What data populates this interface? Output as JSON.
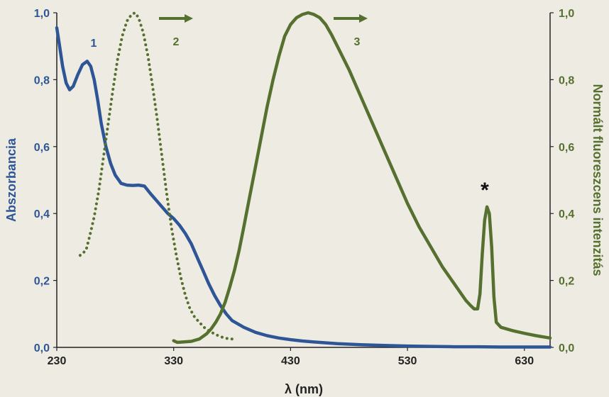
{
  "chart_data": {
    "type": "line",
    "xlabel": "λ (nm)",
    "ylabel_left": "Abszorbancia",
    "ylabel_right": "Normált fluoreszcens intenzitás",
    "xlim": [
      230,
      652
    ],
    "ylim_left": [
      0,
      1.0
    ],
    "ylim_right": [
      0,
      1.0
    ],
    "x_ticks": [
      "230",
      "330",
      "430",
      "530",
      "630"
    ],
    "y_ticks_left": [
      "0,0",
      "0,2",
      "0,4",
      "0,6",
      "0,8",
      "1,0"
    ],
    "y_ticks_right": [
      "0,0",
      "0,2",
      "0,4",
      "0,6",
      "0,8",
      "1,0"
    ],
    "grid": false,
    "colors": {
      "absorbance": "#2e5596",
      "fluorescence": "#55702f",
      "left_axis": "#2e5596",
      "right_axis": "#55702f"
    },
    "annotations": {
      "label_1": "1",
      "label_2": "2",
      "label_3": "3",
      "star": "*"
    },
    "series": [
      {
        "label": "1",
        "axis": "left",
        "style": "solid",
        "x": [
          230,
          232,
          235,
          238,
          241,
          244,
          248,
          252,
          256,
          259,
          262,
          265,
          268,
          272,
          276,
          280,
          285,
          290,
          295,
          300,
          305,
          310,
          315,
          320,
          325,
          330,
          335,
          340,
          345,
          350,
          355,
          360,
          365,
          370,
          375,
          380,
          390,
          400,
          410,
          420,
          430,
          440,
          450,
          470,
          490,
          510,
          530,
          550,
          570,
          590,
          610,
          630,
          652
        ],
        "y": [
          0.955,
          0.91,
          0.84,
          0.79,
          0.77,
          0.78,
          0.815,
          0.845,
          0.855,
          0.84,
          0.8,
          0.74,
          0.67,
          0.6,
          0.55,
          0.515,
          0.49,
          0.485,
          0.484,
          0.485,
          0.482,
          0.46,
          0.44,
          0.42,
          0.4,
          0.385,
          0.365,
          0.34,
          0.31,
          0.27,
          0.23,
          0.19,
          0.155,
          0.125,
          0.1,
          0.08,
          0.06,
          0.045,
          0.035,
          0.028,
          0.023,
          0.019,
          0.016,
          0.011,
          0.008,
          0.006,
          0.004,
          0.003,
          0.002,
          0.002,
          0.001,
          0.001,
          0.001
        ]
      },
      {
        "label": "2",
        "axis": "right",
        "style": "dotted",
        "x": [
          250,
          255,
          258,
          262,
          266,
          270,
          274,
          278,
          282,
          286,
          290,
          294,
          297,
          300,
          304,
          308,
          312,
          316,
          320,
          324,
          328,
          332,
          336,
          340,
          344,
          348,
          352,
          356,
          360,
          365,
          370,
          375,
          380
        ],
        "y": [
          0.275,
          0.29,
          0.33,
          0.39,
          0.47,
          0.57,
          0.67,
          0.77,
          0.86,
          0.93,
          0.975,
          0.995,
          1.0,
          0.985,
          0.94,
          0.87,
          0.78,
          0.68,
          0.57,
          0.46,
          0.36,
          0.28,
          0.21,
          0.155,
          0.115,
          0.09,
          0.075,
          0.06,
          0.05,
          0.04,
          0.032,
          0.027,
          0.025
        ]
      },
      {
        "label": "3",
        "axis": "right",
        "style": "solid",
        "x": [
          330,
          333,
          338,
          345,
          352,
          358,
          362,
          366,
          370,
          374,
          378,
          382,
          386,
          390,
          395,
          400,
          405,
          410,
          415,
          420,
          425,
          430,
          435,
          440,
          445,
          450,
          455,
          460,
          465,
          470,
          480,
          490,
          500,
          510,
          520,
          530,
          540,
          550,
          560,
          570,
          575,
          580,
          584,
          587,
          590,
          592,
          594,
          596,
          598,
          600,
          602,
          604,
          606,
          610,
          620,
          630,
          640,
          652
        ],
        "y": [
          0.02,
          0.015,
          0.016,
          0.018,
          0.025,
          0.04,
          0.055,
          0.075,
          0.1,
          0.135,
          0.18,
          0.23,
          0.29,
          0.36,
          0.45,
          0.54,
          0.63,
          0.72,
          0.8,
          0.87,
          0.93,
          0.965,
          0.985,
          0.995,
          1.0,
          0.995,
          0.985,
          0.965,
          0.935,
          0.9,
          0.83,
          0.75,
          0.67,
          0.59,
          0.51,
          0.43,
          0.36,
          0.3,
          0.24,
          0.19,
          0.165,
          0.14,
          0.125,
          0.115,
          0.115,
          0.16,
          0.28,
          0.38,
          0.42,
          0.4,
          0.3,
          0.15,
          0.075,
          0.06,
          0.05,
          0.042,
          0.035,
          0.028
        ]
      }
    ]
  }
}
